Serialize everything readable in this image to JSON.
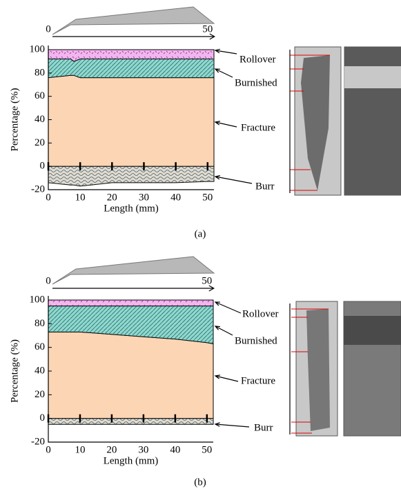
{
  "chart_data": [
    {
      "type": "area",
      "caption": "(a)",
      "xlabel": "Length (mm)",
      "ylabel": "Percentage (%)",
      "length_marks": [
        0,
        50
      ],
      "x": [
        0,
        7,
        8,
        10,
        20,
        30,
        40,
        50,
        52
      ],
      "series": [
        {
          "name": "Rollover",
          "color": "#f2b6ee",
          "values": [
            8,
            8,
            10,
            8,
            8,
            8,
            8,
            8,
            8
          ]
        },
        {
          "name": "Burnished",
          "color": "#8ed8cf",
          "values": [
            16,
            14,
            12,
            16,
            16,
            16,
            16,
            16,
            16
          ]
        },
        {
          "name": "Fracture",
          "color": "#fcd5b4",
          "values": [
            76,
            78,
            78,
            76,
            76,
            76,
            76,
            76,
            76
          ]
        },
        {
          "name": "Burr",
          "color": "#dcdcd4",
          "values": [
            -14,
            -16,
            -16,
            -17,
            -14,
            -14,
            -14,
            -13,
            -13
          ]
        }
      ],
      "xlim": [
        0,
        52
      ],
      "ylim": [
        -20,
        100
      ],
      "xticks": [
        0,
        10,
        20,
        30,
        40,
        50
      ],
      "yticks": [
        100,
        80,
        60,
        40,
        20,
        0,
        -20
      ]
    },
    {
      "type": "area",
      "caption": "(b)",
      "xlabel": "Length (mm)",
      "ylabel": "Percentage (%)",
      "length_marks": [
        0,
        50
      ],
      "x": [
        0,
        10,
        20,
        30,
        40,
        50,
        52
      ],
      "series": [
        {
          "name": "Rollover",
          "color": "#f2b6ee",
          "values": [
            5,
            5,
            5,
            5,
            5,
            5,
            5
          ]
        },
        {
          "name": "Burnished",
          "color": "#8ed8cf",
          "values": [
            22,
            22,
            24,
            26,
            28,
            31,
            32
          ]
        },
        {
          "name": "Fracture",
          "color": "#fcd5b4",
          "values": [
            73,
            73,
            71,
            69,
            67,
            64,
            63
          ]
        },
        {
          "name": "Burr",
          "color": "#dcdcd4",
          "values": [
            -5,
            -5,
            -5,
            -5,
            -5,
            -5,
            -5
          ]
        }
      ],
      "xlim": [
        0,
        52
      ],
      "ylim": [
        -20,
        100
      ],
      "xticks": [
        0,
        10,
        20,
        30,
        40,
        50
      ],
      "yticks": [
        100,
        80,
        60,
        40,
        20,
        0,
        -20
      ]
    }
  ]
}
